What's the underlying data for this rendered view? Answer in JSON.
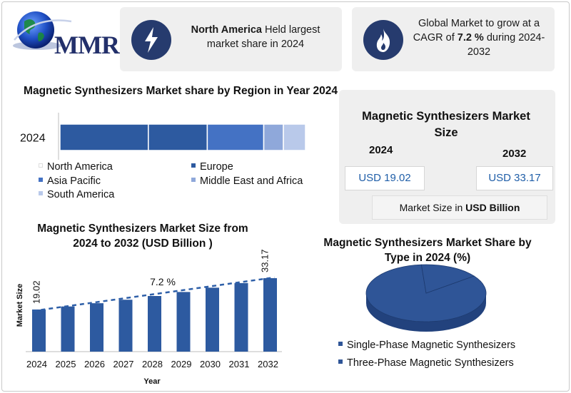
{
  "brand": {
    "logo_text": "MMR"
  },
  "highlights": [
    {
      "bold": "North America",
      "rest": " Held largest market share in 2024",
      "icon": "lightning-icon"
    },
    {
      "pre": "Global Market to grow at a CAGR of ",
      "bold": "7.2 %",
      "rest": " during 2024-2032",
      "icon": "flame-icon"
    }
  ],
  "market_size_card": {
    "title": "Magnetic Synthesizers Market Size",
    "year_a": "2024",
    "year_b": "2032",
    "value_a": "USD 19.02",
    "value_b": "USD 33.17",
    "unit_pre": "Market Size in ",
    "unit_bold": "USD Billion"
  },
  "colors": {
    "dark_blue": "#2d5aa0",
    "mid_blue": "#4472c4",
    "light_blue": "#8fa8da",
    "pale_blue": "#b9c9ea",
    "pie_dark": "#22427d",
    "pie_top": "#2f5597",
    "trend": "#2e5fa8"
  },
  "chart_data": [
    {
      "type": "bar",
      "orientation": "horizontal-stacked",
      "title": "Magnetic Synthesizers Market share by Region in Year 2024",
      "categories": [
        "2024"
      ],
      "series": [
        {
          "name": "North America",
          "values": [
            36
          ]
        },
        {
          "name": "Europe",
          "values": [
            24
          ]
        },
        {
          "name": "Asia Pacific",
          "values": [
            23
          ]
        },
        {
          "name": "Middle East and Africa",
          "values": [
            8
          ]
        },
        {
          "name": "South America",
          "values": [
            9
          ]
        }
      ],
      "legend_position": "bottom"
    },
    {
      "type": "bar",
      "title": "Magnetic Synthesizers  Market Size from 2024 to 2032 (USD Billion )",
      "xlabel": "Year",
      "ylabel": "Market Size",
      "categories": [
        "2024",
        "2025",
        "2026",
        "2027",
        "2028",
        "2029",
        "2030",
        "2031",
        "2032"
      ],
      "values": [
        19.02,
        20.39,
        21.86,
        23.43,
        25.12,
        26.93,
        28.87,
        30.95,
        33.17
      ],
      "data_labels": {
        "first": "19.02",
        "last": "33.17"
      },
      "trend_label": "7.2 %",
      "ylim": [
        0,
        36
      ],
      "grid": false
    },
    {
      "type": "pie",
      "title": "Magnetic Synthesizers  Market Share by Type in  2024 (%)",
      "series": [
        {
          "name": "Single-Phase Magnetic Synthesizers",
          "values": [
            84
          ]
        },
        {
          "name": "Three-Phase Magnetic Synthesizers",
          "values": [
            16
          ]
        }
      ],
      "legend_position": "bottom"
    }
  ]
}
